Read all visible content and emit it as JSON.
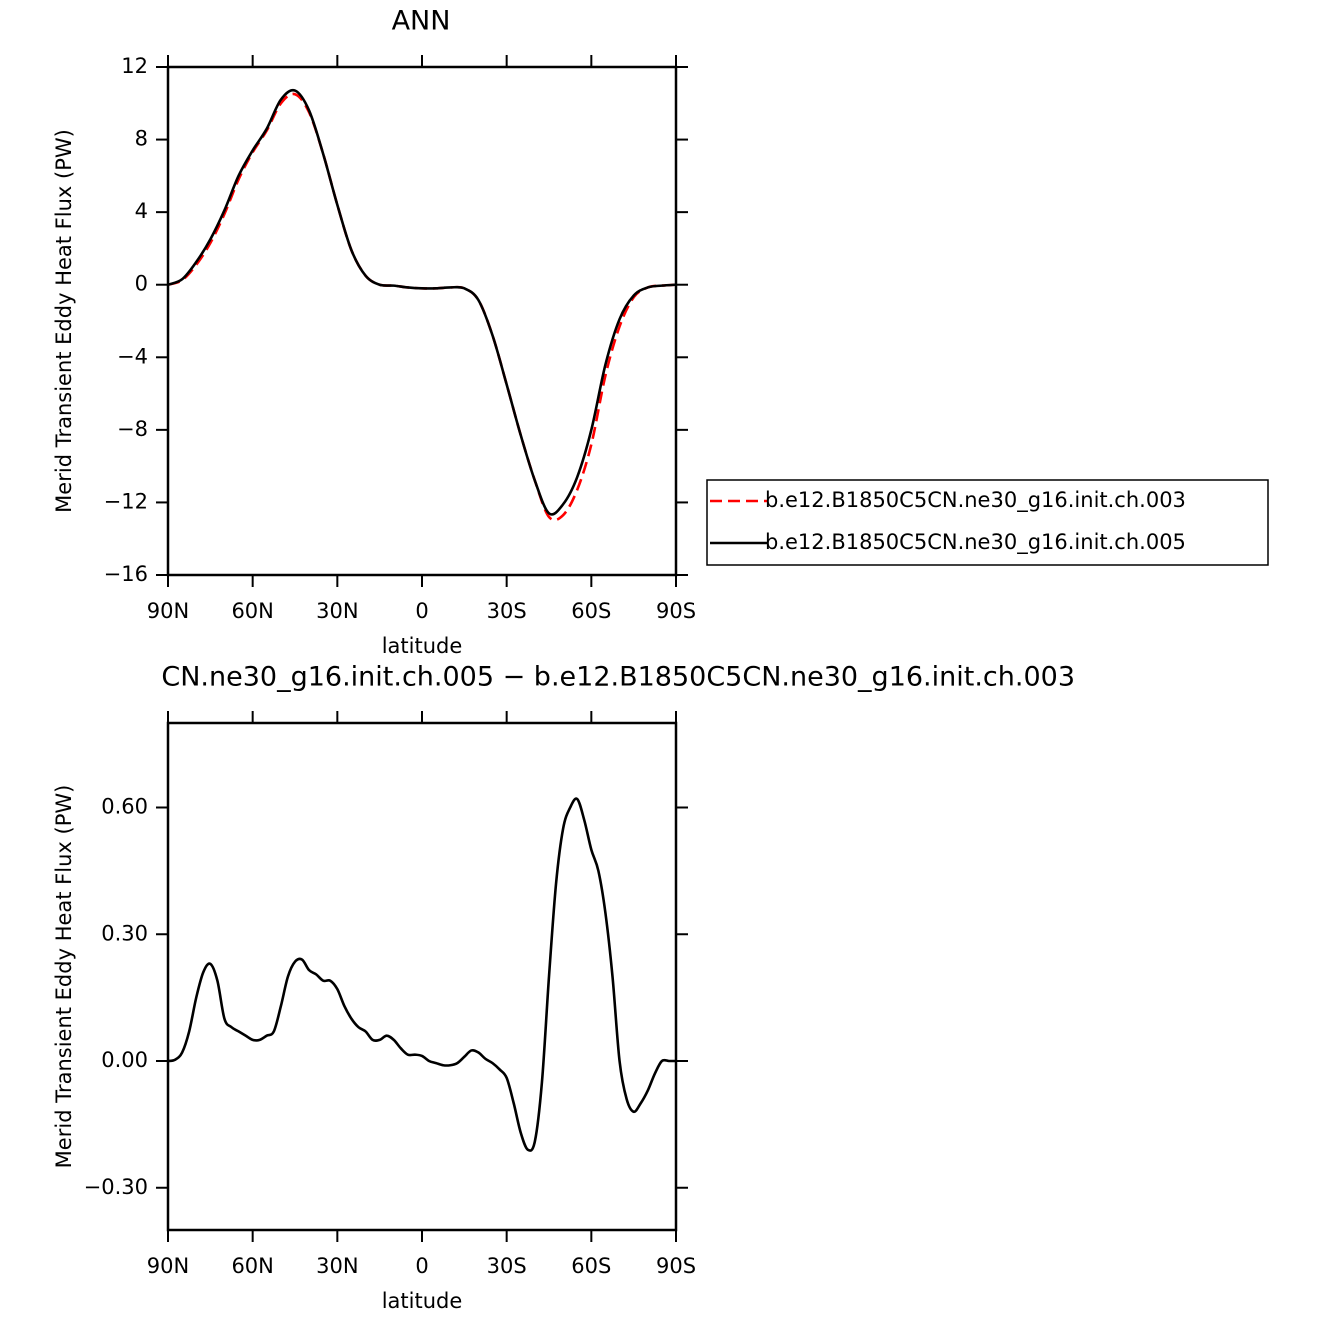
{
  "chart_data": [
    {
      "type": "line",
      "title": "ANN",
      "ylabel": "Merid Transient Eddy Heat Flux (PW)",
      "xlabel": "latitude",
      "x": [
        90,
        85,
        80,
        75,
        70,
        65,
        60,
        55,
        50,
        45,
        40,
        35,
        30,
        25,
        20,
        15,
        10,
        5,
        0,
        -5,
        -10,
        -15,
        -20,
        -25,
        -30,
        -35,
        -40,
        -45,
        -50,
        -55,
        -60,
        -65,
        -70,
        -75,
        -80,
        -85,
        -90
      ],
      "series": [
        {
          "name": "b.e12.B1850C5CN.ne30_g16.init.ch.003",
          "color": "#ff0000",
          "dash": true,
          "values": [
            0,
            0.25,
            1.1,
            2.3,
            3.9,
            5.8,
            7.3,
            8.5,
            10.0,
            10.5,
            9.5,
            7.2,
            4.4,
            1.9,
            0.5,
            0.0,
            -0.05,
            -0.15,
            -0.2,
            -0.2,
            -0.15,
            -0.2,
            -0.85,
            -2.8,
            -5.5,
            -8.3,
            -10.8,
            -12.8,
            -12.7,
            -11.3,
            -8.8,
            -5.0,
            -2.3,
            -0.7,
            -0.15,
            -0.05,
            0
          ]
        },
        {
          "name": "b.e12.B1850C5CN.ne30_g16.init.ch.005",
          "color": "#000000",
          "dash": false,
          "values": [
            0,
            0.3,
            1.25,
            2.5,
            4.1,
            6.0,
            7.4,
            8.6,
            10.2,
            10.7,
            9.6,
            7.2,
            4.4,
            1.9,
            0.5,
            0.0,
            -0.05,
            -0.15,
            -0.2,
            -0.2,
            -0.15,
            -0.2,
            -0.85,
            -2.8,
            -5.5,
            -8.3,
            -10.8,
            -12.6,
            -12.1,
            -10.6,
            -8.0,
            -4.4,
            -1.9,
            -0.6,
            -0.15,
            -0.05,
            0
          ]
        }
      ],
      "xlim": [
        90,
        -90
      ],
      "xticks": [
        {
          "value": 90,
          "label": "90N"
        },
        {
          "value": 60,
          "label": "60N"
        },
        {
          "value": 30,
          "label": "30N"
        },
        0,
        {
          "value": -30,
          "label": "30S"
        },
        {
          "value": -60,
          "label": "60S"
        },
        {
          "value": -90,
          "label": "90S"
        }
      ],
      "ylim": [
        -16,
        12
      ],
      "yticks": [
        {
          "value": -16,
          "label": "−16"
        },
        {
          "value": -12,
          "label": "−12"
        },
        {
          "value": -8,
          "label": "−8"
        },
        {
          "value": -4,
          "label": "−4"
        },
        0,
        4,
        8,
        12
      ],
      "legend": "right"
    },
    {
      "type": "line",
      "title": "CN.ne30_g16.init.ch.005 − b.e12.B1850C5CN.ne30_g16.init.ch.003",
      "ylabel": "Merid Transient Eddy Heat Flux (PW)",
      "xlabel": "latitude",
      "x": [
        90,
        87.5,
        85,
        82.5,
        80,
        77.5,
        75,
        72.5,
        70,
        67.5,
        65,
        62.5,
        60,
        57.5,
        55,
        52.5,
        50,
        47.5,
        45,
        42.5,
        40,
        37.5,
        35,
        32.5,
        30,
        27.5,
        25,
        22.5,
        20,
        17.5,
        15,
        12.5,
        10,
        7.5,
        5,
        2.5,
        0,
        -2.5,
        -5,
        -7.5,
        -10,
        -12.5,
        -15,
        -17.5,
        -20,
        -22.5,
        -25,
        -27.5,
        -30,
        -32.5,
        -35,
        -37.5,
        -40,
        -42.5,
        -45,
        -47.5,
        -50,
        -52.5,
        -55,
        -57.5,
        -60,
        -62.5,
        -65,
        -67.5,
        -70,
        -72.5,
        -75,
        -77.5,
        -80,
        -82.5,
        -85,
        -87.5,
        -90
      ],
      "series": [
        {
          "color": "#000000",
          "dash": false,
          "values": [
            0,
            0.003,
            0.02,
            0.07,
            0.15,
            0.21,
            0.23,
            0.19,
            0.1,
            0.08,
            0.07,
            0.06,
            0.05,
            0.05,
            0.06,
            0.07,
            0.13,
            0.2,
            0.235,
            0.24,
            0.215,
            0.205,
            0.19,
            0.19,
            0.17,
            0.13,
            0.1,
            0.08,
            0.07,
            0.05,
            0.05,
            0.06,
            0.05,
            0.03,
            0.015,
            0.015,
            0.012,
            0.0,
            -0.005,
            -0.01,
            -0.01,
            -0.005,
            0.01,
            0.025,
            0.02,
            0.005,
            -0.005,
            -0.02,
            -0.04,
            -0.1,
            -0.17,
            -0.21,
            -0.19,
            -0.05,
            0.2,
            0.42,
            0.55,
            0.6,
            0.62,
            0.57,
            0.5,
            0.45,
            0.35,
            0.2,
            0.0,
            -0.09,
            -0.12,
            -0.1,
            -0.07,
            -0.03,
            0.0,
            0.0,
            0
          ]
        }
      ],
      "xlim": [
        90,
        -90
      ],
      "xticks": [
        {
          "value": 90,
          "label": "90N"
        },
        {
          "value": 60,
          "label": "60N"
        },
        {
          "value": 30,
          "label": "30N"
        },
        0,
        {
          "value": -30,
          "label": "30S"
        },
        {
          "value": -60,
          "label": "60S"
        },
        {
          "value": -90,
          "label": "90S"
        }
      ],
      "ylim": [
        -0.4,
        0.8
      ],
      "yticks": [
        {
          "value": -0.3,
          "label": "−0.30"
        },
        {
          "value": 0,
          "label": "0.00"
        },
        {
          "value": 0.3,
          "label": "0.30"
        },
        {
          "value": 0.6,
          "label": "0.60"
        }
      ]
    }
  ]
}
